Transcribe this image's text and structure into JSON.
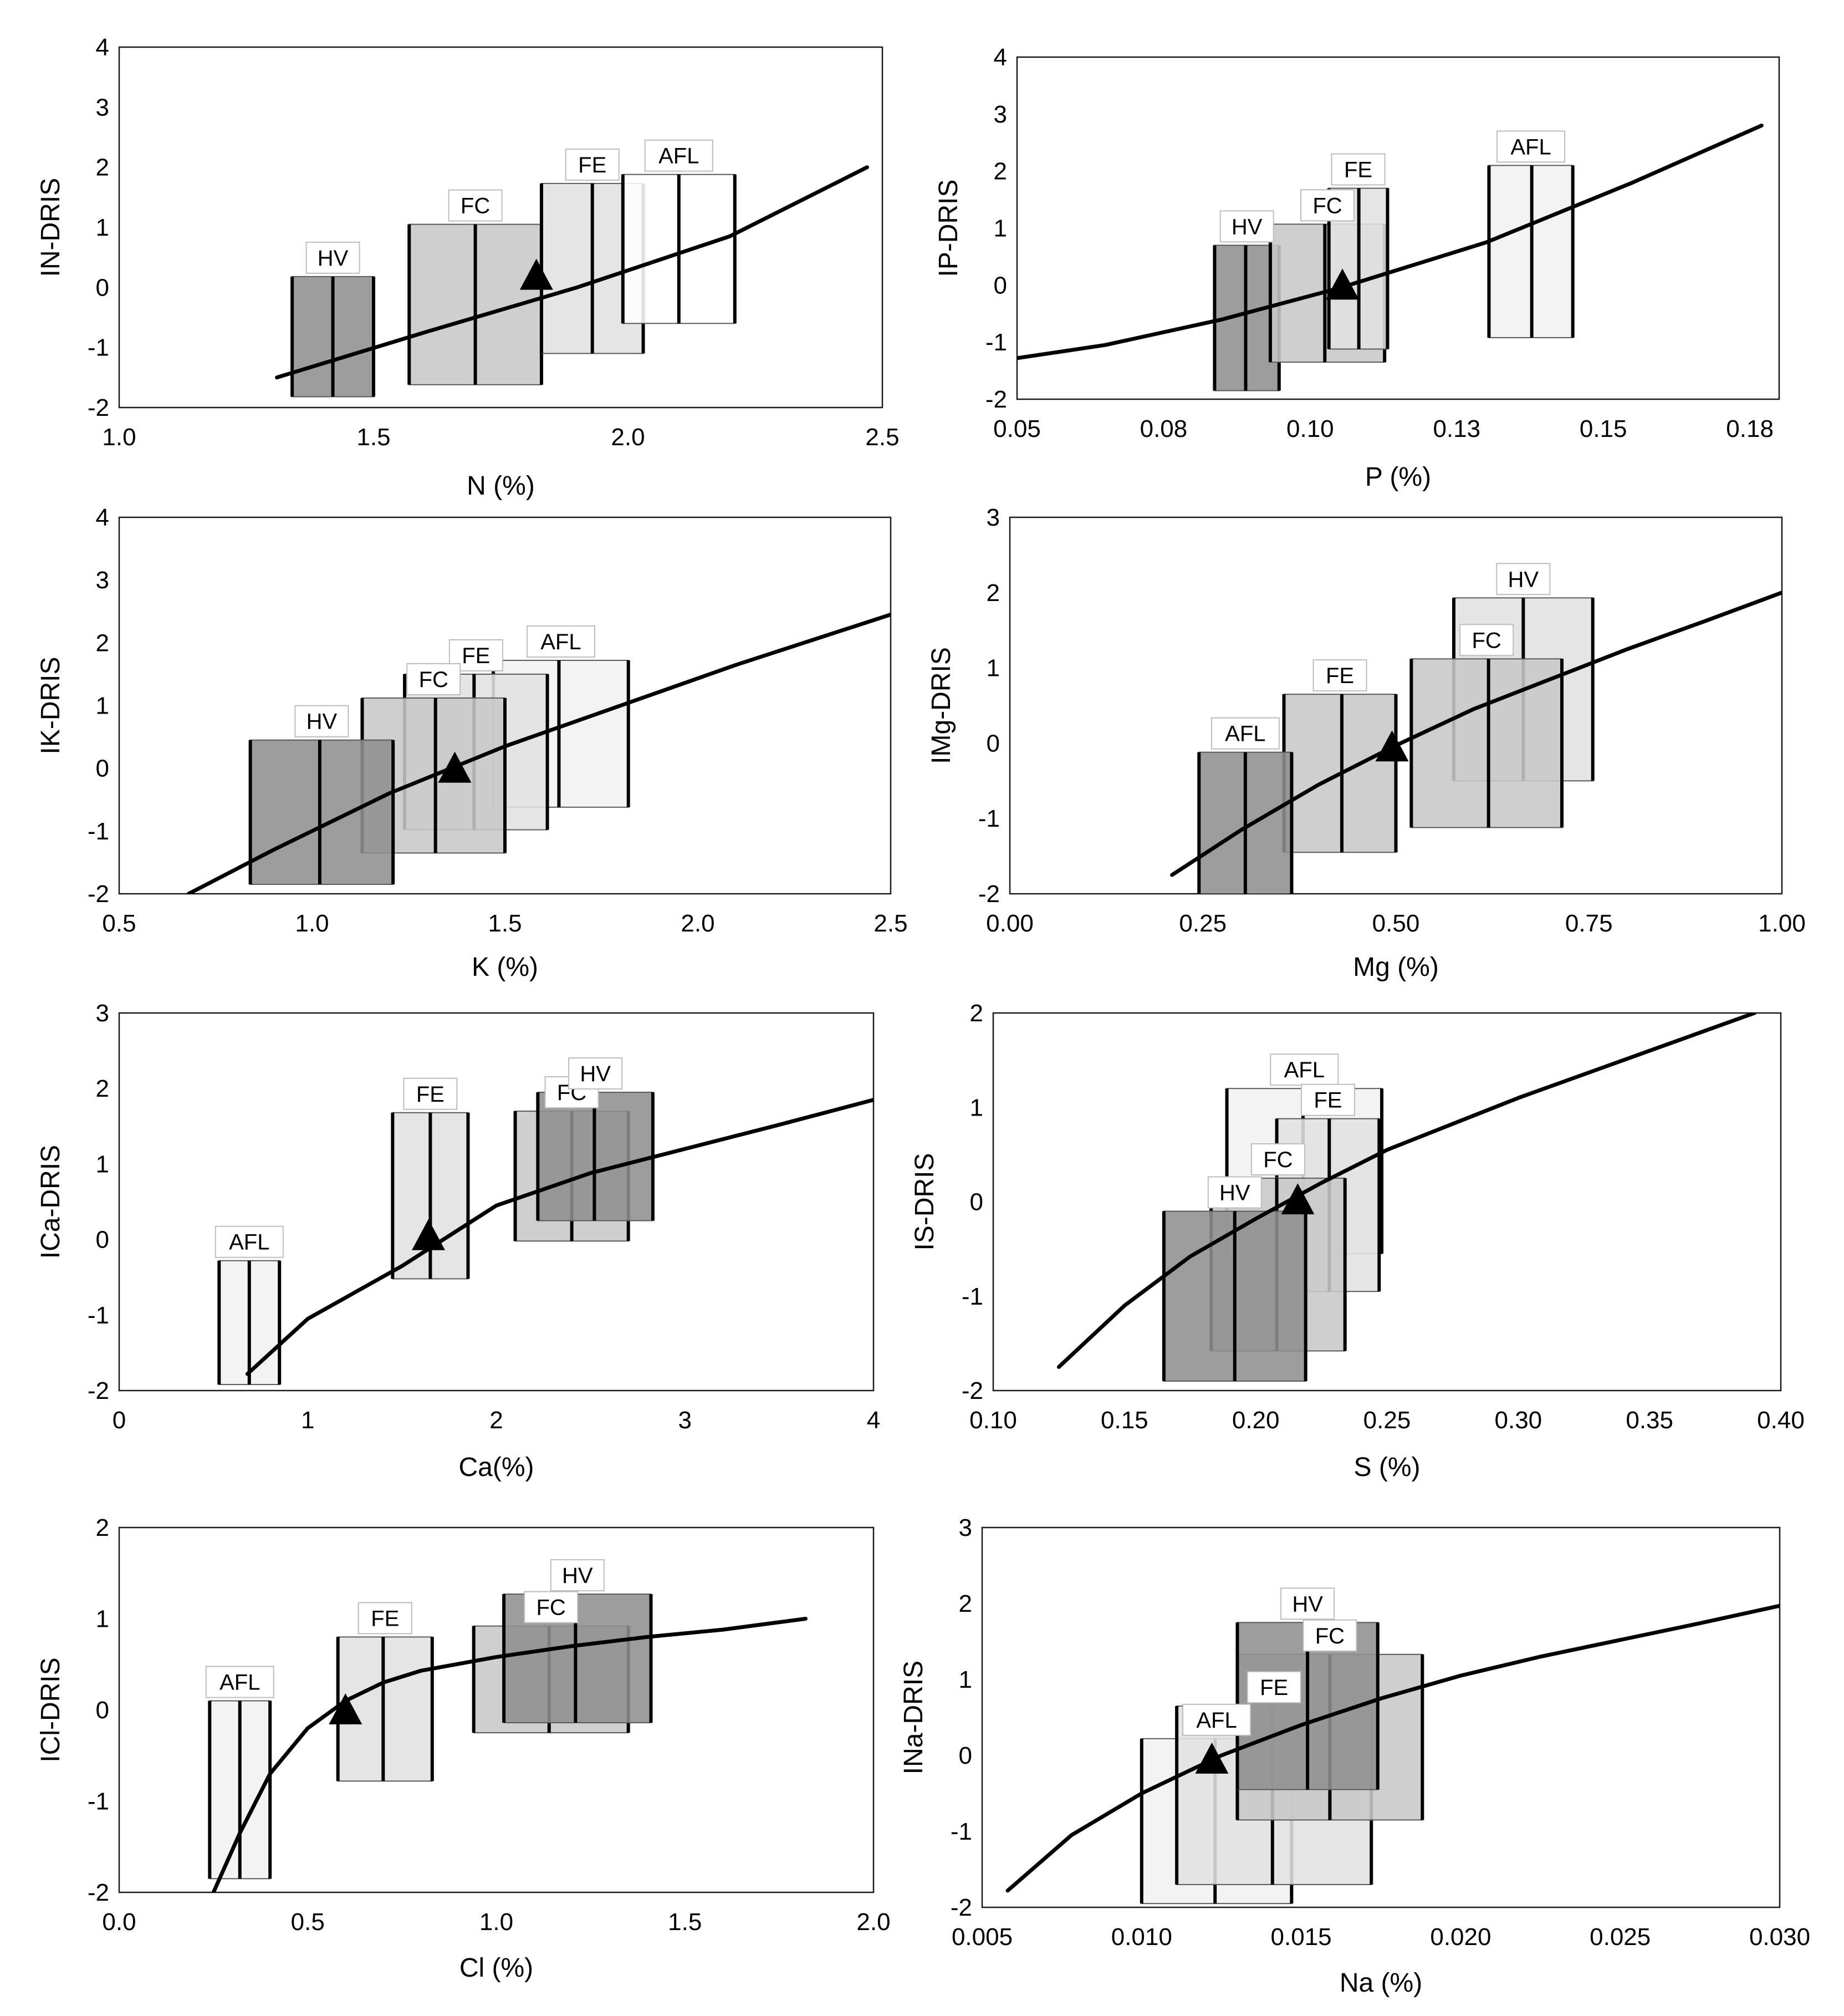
{
  "colors": {
    "HV": "#8f8f8f",
    "FC": "#c8c8c8",
    "FE": "#e1e1e1",
    "AFL": "#f1f1f1",
    "AFL_open": "#ffffff",
    "curve": "#000000",
    "curve_mid": "#6e6e6e",
    "marker": "#000000"
  },
  "chart_data": [
    {
      "type": "scatter",
      "xlabel": "N (%)",
      "ylabel": "IN-DRIS",
      "xlim": [
        1.0,
        2.5
      ],
      "ylim": [
        -2,
        4
      ],
      "xticks": [
        "1.0",
        "1.5",
        "2.0",
        "2.5"
      ],
      "xtick_values": [
        1.0,
        1.5,
        2.0,
        2.5
      ],
      "yticks": [
        "-2",
        "-1",
        "0",
        "1",
        "2",
        "3",
        "4"
      ],
      "ytick_values": [
        -2,
        -1,
        0,
        1,
        2,
        3,
        4
      ],
      "curve": {
        "x": [
          1.31,
          1.6,
          1.9,
          2.2,
          2.47
        ],
        "y": [
          -1.5,
          -0.75,
          0.0,
          0.85,
          2.0
        ]
      },
      "marker": {
        "x": 1.82,
        "y": 0.2
      },
      "boxes": [
        {
          "name": "HV",
          "x0": 1.34,
          "x1": 1.5,
          "y0": -1.82,
          "y1": 0.18,
          "lines": [
            1.34,
            1.42,
            1.5
          ],
          "fill": "HV"
        },
        {
          "name": "FC",
          "x0": 1.57,
          "x1": 1.83,
          "y0": -1.62,
          "y1": 1.05,
          "lines": [
            1.57,
            1.7,
            1.83
          ],
          "fill": "FC"
        },
        {
          "name": "FE",
          "x0": 1.83,
          "x1": 2.03,
          "y0": -1.1,
          "y1": 1.73,
          "lines": [
            1.83,
            1.93,
            2.03
          ],
          "fill": "FE"
        },
        {
          "name": "AFL",
          "x0": 1.99,
          "x1": 2.21,
          "y0": -0.6,
          "y1": 1.88,
          "lines": [
            1.99,
            2.1,
            2.21
          ],
          "fill": "AFL_open"
        }
      ]
    },
    {
      "type": "scatter",
      "xlabel": "P (%)",
      "ylabel": "IP-DRIS",
      "xlim": [
        0.05,
        0.18
      ],
      "ylim": [
        -2,
        4
      ],
      "xticks": [
        "0.05",
        "0.08",
        "0.10",
        "0.13",
        "0.15",
        "0.18"
      ],
      "xtick_values": [
        0.05,
        0.075,
        0.1,
        0.125,
        0.15,
        0.175
      ],
      "yticks": [
        "-2",
        "-1",
        "0",
        "1",
        "2",
        "3",
        "4"
      ],
      "ytick_values": [
        -2,
        -1,
        0,
        1,
        2,
        3,
        4
      ],
      "curve": {
        "x": [
          0.05,
          0.065,
          0.085,
          0.105,
          0.13,
          0.155,
          0.177
        ],
        "y": [
          -1.28,
          -1.05,
          -0.6,
          -0.05,
          0.75,
          1.8,
          2.8
        ]
      },
      "marker": {
        "x": 0.1055,
        "y": 0.0
      },
      "boxes": [
        {
          "name": "HV",
          "x0": 0.0837,
          "x1": 0.0947,
          "y0": -1.85,
          "y1": 0.7,
          "lines": [
            0.0837,
            0.089,
            0.0947
          ],
          "fill": "HV"
        },
        {
          "name": "FC",
          "x0": 0.0932,
          "x1": 0.1127,
          "y0": -1.35,
          "y1": 1.07,
          "lines": [
            0.0932,
            0.1025,
            0.1127
          ],
          "fill": "FC"
        },
        {
          "name": "FE",
          "x0": 0.1032,
          "x1": 0.1132,
          "y0": -1.12,
          "y1": 1.7,
          "lines": [
            0.1032,
            0.1083,
            0.1132
          ],
          "fill": "FE"
        },
        {
          "name": "AFL",
          "x0": 0.1305,
          "x1": 0.1448,
          "y0": -0.92,
          "y1": 2.1,
          "lines": [
            0.1305,
            0.1378,
            0.1448
          ],
          "fill": "AFL"
        }
      ]
    },
    {
      "type": "scatter",
      "xlabel": "K (%)",
      "ylabel": "IK-DRIS",
      "xlim": [
        0.5,
        2.5
      ],
      "ylim": [
        -2,
        4
      ],
      "xticks": [
        "0.5",
        "1.0",
        "1.5",
        "2.0",
        "2.5"
      ],
      "xtick_values": [
        0.5,
        1.0,
        1.5,
        2.0,
        2.5
      ],
      "yticks": [
        "-2",
        "-1",
        "0",
        "1",
        "2",
        "3",
        "4"
      ],
      "ytick_values": [
        -2,
        -1,
        0,
        1,
        2,
        3,
        4
      ],
      "curve": {
        "x": [
          0.68,
          0.9,
          1.2,
          1.5,
          1.8,
          2.1,
          2.5
        ],
        "y": [
          -2.0,
          -1.3,
          -0.4,
          0.35,
          1.0,
          1.65,
          2.45
        ]
      },
      "marker": {
        "x": 1.37,
        "y": 0.0
      },
      "boxes": [
        {
          "name": "AFL",
          "x0": 1.47,
          "x1": 1.82,
          "y0": -0.62,
          "y1": 1.72,
          "lines": [
            1.47,
            1.64,
            1.82
          ],
          "fill": "AFL"
        },
        {
          "name": "FE",
          "x0": 1.24,
          "x1": 1.61,
          "y0": -0.98,
          "y1": 1.5,
          "lines": [
            1.24,
            1.42,
            1.61
          ],
          "fill": "FE"
        },
        {
          "name": "FC",
          "x0": 1.13,
          "x1": 1.5,
          "y0": -1.35,
          "y1": 1.12,
          "lines": [
            1.13,
            1.32,
            1.5
          ],
          "fill": "FC"
        },
        {
          "name": "HV",
          "x0": 0.84,
          "x1": 1.21,
          "y0": -1.85,
          "y1": 0.45,
          "lines": [
            0.84,
            1.02,
            1.21
          ],
          "fill": "HV"
        }
      ]
    },
    {
      "type": "scatter",
      "xlabel": "Mg (%)",
      "ylabel": "IMg-DRIS",
      "xlim": [
        0.0,
        1.0
      ],
      "ylim": [
        -2,
        3
      ],
      "xticks": [
        "0.00",
        "0.25",
        "0.50",
        "0.75",
        "1.00"
      ],
      "xtick_values": [
        0.0,
        0.25,
        0.5,
        0.75,
        1.0
      ],
      "yticks": [
        "-2",
        "-1",
        "0",
        "1",
        "2",
        "3"
      ],
      "ytick_values": [
        -2,
        -1,
        0,
        1,
        2,
        3
      ],
      "curve": {
        "x": [
          0.21,
          0.3,
          0.4,
          0.5,
          0.6,
          0.7,
          0.8,
          0.9,
          1.0
        ],
        "y": [
          -1.75,
          -1.15,
          -0.55,
          -0.03,
          0.45,
          0.85,
          1.25,
          1.62,
          2.0
        ]
      },
      "marker": {
        "x": 0.495,
        "y": -0.05
      },
      "boxes": [
        {
          "name": "HV",
          "x0": 0.575,
          "x1": 0.755,
          "y0": -0.5,
          "y1": 1.93,
          "lines": [
            0.575,
            0.665,
            0.755
          ],
          "fill": "FE"
        },
        {
          "name": "FC",
          "x0": 0.52,
          "x1": 0.715,
          "y0": -1.12,
          "y1": 1.12,
          "lines": [
            0.52,
            0.62,
            0.715
          ],
          "fill": "FC"
        },
        {
          "name": "FE",
          "x0": 0.355,
          "x1": 0.5,
          "y0": -1.45,
          "y1": 0.65,
          "lines": [
            0.355,
            0.43,
            0.5
          ],
          "fill": "FC"
        },
        {
          "name": "AFL",
          "x0": 0.245,
          "x1": 0.365,
          "y0": -2.0,
          "y1": -0.12,
          "lines": [
            0.245,
            0.305,
            0.365
          ],
          "fill": "HV"
        }
      ]
    },
    {
      "type": "scatter",
      "xlabel": "Ca(%)",
      "ylabel": "ICa-DRIS",
      "xlim": [
        0,
        4
      ],
      "ylim": [
        -2,
        3
      ],
      "xticks": [
        "0",
        "1",
        "2",
        "3",
        "4"
      ],
      "xtick_values": [
        0,
        1,
        2,
        3,
        4
      ],
      "yticks": [
        "-2",
        "-1",
        "0",
        "1",
        "2",
        "3"
      ],
      "ytick_values": [
        -2,
        -1,
        0,
        1,
        2,
        3
      ],
      "curve": {
        "x": [
          0.68,
          1.0,
          1.5,
          2.0,
          2.5,
          3.0,
          3.5,
          4.0
        ],
        "y": [
          -1.78,
          -1.05,
          -0.35,
          0.45,
          0.88,
          1.2,
          1.52,
          1.85
        ]
      },
      "marker": {
        "x": 1.64,
        "y": 0.05
      },
      "boxes": [
        {
          "name": "AFL",
          "x0": 0.53,
          "x1": 0.85,
          "y0": -1.92,
          "y1": -0.28,
          "lines": [
            0.53,
            0.69,
            0.85
          ],
          "fill": "AFL"
        },
        {
          "name": "FE",
          "x0": 1.45,
          "x1": 1.85,
          "y0": -0.52,
          "y1": 1.68,
          "lines": [
            1.45,
            1.65,
            1.85
          ],
          "fill": "FE"
        },
        {
          "name": "FC",
          "x0": 2.1,
          "x1": 2.7,
          "y0": -0.02,
          "y1": 1.7,
          "lines": [
            2.1,
            2.4,
            2.7
          ],
          "fill": "FC"
        },
        {
          "name": "HV",
          "x0": 2.22,
          "x1": 2.83,
          "y0": 0.25,
          "y1": 1.95,
          "lines": [
            2.22,
            2.52,
            2.83
          ],
          "fill": "HV"
        }
      ]
    },
    {
      "type": "scatter",
      "xlabel": "S (%)",
      "ylabel": "IS-DRIS",
      "xlim": [
        0.1,
        0.4
      ],
      "ylim": [
        -2,
        2
      ],
      "xticks": [
        "0.10",
        "0.15",
        "0.20",
        "0.25",
        "0.30",
        "0.35",
        "0.40"
      ],
      "xtick_values": [
        0.1,
        0.15,
        0.2,
        0.25,
        0.3,
        0.35,
        0.4
      ],
      "yticks": [
        "-2",
        "-1",
        "0",
        "1",
        "2"
      ],
      "ytick_values": [
        -2,
        -1,
        0,
        1,
        2
      ],
      "curve": {
        "x": [
          0.125,
          0.15,
          0.175,
          0.2,
          0.225,
          0.25,
          0.3,
          0.35,
          0.39
        ],
        "y": [
          -1.75,
          -1.1,
          -0.58,
          -0.18,
          0.2,
          0.55,
          1.1,
          1.6,
          2.0
        ]
      },
      "marker": {
        "x": 0.216,
        "y": 0.02
      },
      "boxes": [
        {
          "name": "AFL",
          "x0": 0.189,
          "x1": 0.248,
          "y0": -0.55,
          "y1": 1.2,
          "lines": [
            0.189,
            0.218,
            0.248
          ],
          "fill": "AFL"
        },
        {
          "name": "FE",
          "x0": 0.208,
          "x1": 0.247,
          "y0": -0.95,
          "y1": 0.88,
          "lines": [
            0.208,
            0.228,
            0.247
          ],
          "fill": "FE"
        },
        {
          "name": "FC",
          "x0": 0.183,
          "x1": 0.234,
          "y0": -1.58,
          "y1": 0.25,
          "lines": [
            0.183,
            0.208,
            0.234
          ],
          "fill": "FC"
        },
        {
          "name": "HV",
          "x0": 0.165,
          "x1": 0.219,
          "y0": -1.9,
          "y1": -0.1,
          "lines": [
            0.165,
            0.192,
            0.219
          ],
          "fill": "HV"
        }
      ]
    },
    {
      "type": "scatter",
      "xlabel": "Cl (%)",
      "ylabel": "ICl-DRIS",
      "xlim": [
        0.0,
        2.0
      ],
      "ylim": [
        -2,
        2
      ],
      "xticks": [
        "0.0",
        "0.5",
        "1.0",
        "1.5",
        "2.0"
      ],
      "xtick_values": [
        0.0,
        0.5,
        1.0,
        1.5,
        2.0
      ],
      "yticks": [
        "-2",
        "-1",
        "0",
        "1",
        "2"
      ],
      "ytick_values": [
        -2,
        -1,
        0,
        1,
        2
      ],
      "curve": {
        "x": [
          0.25,
          0.32,
          0.4,
          0.5,
          0.6,
          0.7,
          0.8,
          1.0,
          1.2,
          1.4,
          1.6,
          1.82
        ],
        "y": [
          -2.0,
          -1.35,
          -0.7,
          -0.2,
          0.1,
          0.3,
          0.43,
          0.58,
          0.7,
          0.8,
          0.88,
          1.0
        ]
      },
      "marker": {
        "x": 0.6,
        "y": 0.0
      },
      "boxes": [
        {
          "name": "AFL",
          "x0": 0.24,
          "x1": 0.4,
          "y0": -1.85,
          "y1": 0.1,
          "lines": [
            0.24,
            0.32,
            0.4
          ],
          "fill": "AFL"
        },
        {
          "name": "FE",
          "x0": 0.58,
          "x1": 0.83,
          "y0": -0.78,
          "y1": 0.8,
          "lines": [
            0.58,
            0.7,
            0.83
          ],
          "fill": "FE"
        },
        {
          "name": "FC",
          "x0": 0.94,
          "x1": 1.35,
          "y0": -0.25,
          "y1": 0.92,
          "lines": [
            0.94,
            1.14,
            1.35
          ],
          "fill": "FC"
        },
        {
          "name": "HV",
          "x0": 1.02,
          "x1": 1.41,
          "y0": -0.14,
          "y1": 1.27,
          "lines": [
            1.02,
            1.21,
            1.41
          ],
          "fill": "HV"
        }
      ]
    },
    {
      "type": "scatter",
      "xlabel": "Na (%)",
      "ylabel": "INa-DRIS",
      "xlim": [
        0.005,
        0.03
      ],
      "ylim": [
        -2,
        3
      ],
      "xticks": [
        "0.005",
        "0.010",
        "0.015",
        "0.020",
        "0.025",
        "0.030"
      ],
      "xtick_values": [
        0.005,
        0.01,
        0.015,
        0.02,
        0.025,
        0.03
      ],
      "yticks": [
        "-2",
        "-1",
        "0",
        "1",
        "2",
        "3"
      ],
      "ytick_values": [
        -2,
        -1,
        0,
        1,
        2,
        3
      ],
      "curve": {
        "x": [
          0.0058,
          0.0078,
          0.01,
          0.0125,
          0.015,
          0.0175,
          0.02,
          0.0225,
          0.025,
          0.0275,
          0.03
        ],
        "y": [
          -1.78,
          -1.05,
          -0.5,
          0.0,
          0.4,
          0.75,
          1.05,
          1.3,
          1.52,
          1.74,
          1.97
        ]
      },
      "marker": {
        "x": 0.0122,
        "y": -0.05
      },
      "boxes": [
        {
          "name": "AFL",
          "x0": 0.01,
          "x1": 0.0147,
          "y0": -1.95,
          "y1": 0.22,
          "lines": [
            0.01,
            0.0123,
            0.0147
          ],
          "fill": "AFL"
        },
        {
          "name": "FE",
          "x0": 0.0111,
          "x1": 0.0172,
          "y0": -1.7,
          "y1": 0.65,
          "lines": [
            0.0111,
            0.0141,
            0.0172
          ],
          "fill": "FE"
        },
        {
          "name": "FC",
          "x0": 0.013,
          "x1": 0.0188,
          "y0": -0.85,
          "y1": 1.33,
          "lines": [
            0.013,
            0.0159,
            0.0188
          ],
          "fill": "FC"
        },
        {
          "name": "HV",
          "x0": 0.013,
          "x1": 0.0174,
          "y0": -0.45,
          "y1": 1.75,
          "lines": [
            0.013,
            0.0152,
            0.0174
          ],
          "fill": "HV"
        }
      ]
    }
  ]
}
